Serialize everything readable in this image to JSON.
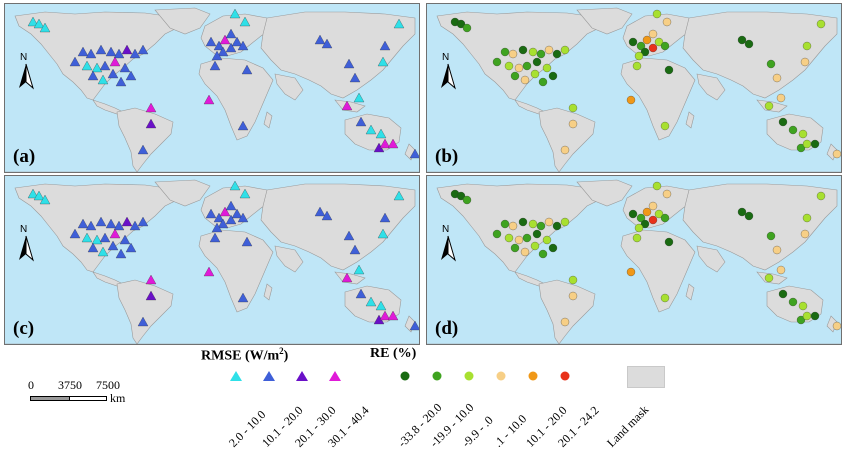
{
  "panels": [
    {
      "id": "a",
      "label": "(a)",
      "north": "N"
    },
    {
      "id": "b",
      "label": "(b)",
      "north": "N"
    },
    {
      "id": "c",
      "label": "(c)",
      "north": "N"
    },
    {
      "id": "d",
      "label": "(d)",
      "north": "N"
    }
  ],
  "scale": {
    "ticks": [
      "0",
      "3750",
      "7500"
    ],
    "unit": "km"
  },
  "legend_rmse": {
    "title": "RMSE (W/m",
    "title_sup": "2",
    "title_end": ")",
    "symbol": "triangle",
    "classes": [
      {
        "label": "2.0 - 10.0",
        "color": "#2fe0e8"
      },
      {
        "label": "10.1 - 20.0",
        "color": "#3f5fd8"
      },
      {
        "label": "20.1 - 30.0",
        "color": "#6a10c8"
      },
      {
        "label": "30.1 - 40.4",
        "color": "#e01ad8"
      }
    ]
  },
  "legend_re": {
    "title": "RE (%)",
    "symbol": "circle",
    "classes": [
      {
        "label": "-33.8 - 20.0",
        "color": "#1a6b12"
      },
      {
        "label": "-19.9 - 10.0",
        "color": "#3fa320"
      },
      {
        "label": "-9.9 - .0",
        "color": "#a8e030"
      },
      {
        "label": ".1 - 10.0",
        "color": "#f7cf86"
      },
      {
        "label": "10.1 - 20.0",
        "color": "#f09818"
      },
      {
        "label": "20.1 - 24.2",
        "color": "#e8321a"
      }
    ]
  },
  "land_mask": {
    "label": "Land mask",
    "color": "#dcdcdc"
  },
  "map_colors": {
    "ocean": "#bfe6f7",
    "land": "#dcdcdc",
    "coast": "#9a9a9a"
  }
}
